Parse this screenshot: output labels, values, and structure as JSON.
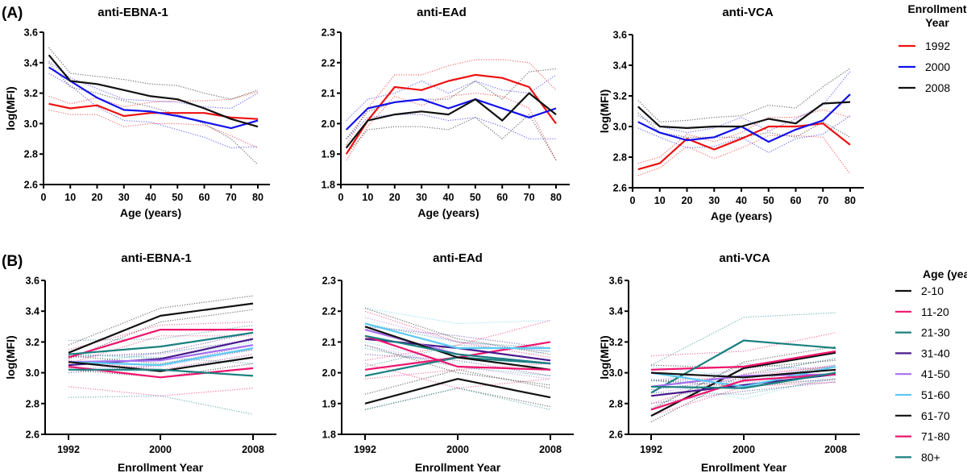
{
  "panels": {
    "A": "(A)",
    "B": "(B)"
  },
  "legend_a": {
    "title_line1": "Enrollment",
    "title_line2": "Year",
    "items": [
      {
        "label": "1992",
        "color": "#ee1111"
      },
      {
        "label": "2000",
        "color": "#1111ee"
      },
      {
        "label": "2008",
        "color": "#111111"
      }
    ]
  },
  "legend_b": {
    "title": "Age (years)",
    "items": [
      {
        "label": "2-10",
        "color": "#111111"
      },
      {
        "label": "11-20",
        "color": "#f0146e"
      },
      {
        "label": "21-30",
        "color": "#1a8080"
      },
      {
        "label": "31-40",
        "color": "#4b1a8c"
      },
      {
        "label": "41-50",
        "color": "#a66df0"
      },
      {
        "label": "51-60",
        "color": "#5ccaf2"
      },
      {
        "label": "61-70",
        "color": "#111111"
      },
      {
        "label": "71-80",
        "color": "#f0146e"
      },
      {
        "label": "80+",
        "color": "#1a8080"
      }
    ]
  },
  "chart_data": [
    {
      "id": "A1",
      "type": "line",
      "title": "anti-EBNA-1",
      "xlabel": "Age (years)",
      "ylabel": "log(MFI)",
      "x": [
        2,
        10,
        20,
        30,
        40,
        50,
        60,
        70,
        80
      ],
      "xticks": [
        "0",
        "10",
        "20",
        "30",
        "40",
        "50",
        "60",
        "70",
        "80"
      ],
      "xlim": [
        0,
        80
      ],
      "yticks": [
        "2.6",
        "2.8",
        "3.0",
        "3.2",
        "3.4",
        "3.6"
      ],
      "ylim": [
        2.6,
        3.6
      ],
      "series": [
        {
          "name": "1992",
          "color": "#ee1111",
          "values": [
            3.13,
            3.1,
            3.12,
            3.05,
            3.07,
            3.07,
            3.07,
            3.04,
            3.03
          ],
          "ci_upper": [
            3.18,
            3.13,
            3.17,
            3.11,
            3.14,
            3.15,
            3.15,
            3.16,
            3.21
          ],
          "ci_lower": [
            3.09,
            3.06,
            3.06,
            2.98,
            3.0,
            3.0,
            2.99,
            2.92,
            2.84
          ]
        },
        {
          "name": "2000",
          "color": "#1111ee",
          "values": [
            3.37,
            3.28,
            3.17,
            3.09,
            3.08,
            3.05,
            3.01,
            2.97,
            3.02
          ],
          "ci_upper": [
            3.41,
            3.3,
            3.23,
            3.16,
            3.15,
            3.14,
            3.11,
            3.1,
            3.2
          ],
          "ci_lower": [
            3.33,
            3.25,
            3.11,
            3.02,
            3.01,
            2.96,
            2.91,
            2.84,
            2.85
          ]
        },
        {
          "name": "2008",
          "color": "#111111",
          "values": [
            3.45,
            3.28,
            3.26,
            3.22,
            3.18,
            3.16,
            3.1,
            3.03,
            2.98
          ],
          "ci_upper": [
            3.5,
            3.33,
            3.31,
            3.29,
            3.26,
            3.25,
            3.2,
            3.16,
            3.22
          ],
          "ci_lower": [
            3.4,
            3.24,
            3.2,
            3.15,
            3.11,
            3.06,
            3.0,
            2.9,
            2.73
          ]
        }
      ]
    },
    {
      "id": "A2",
      "type": "line",
      "title": "anti-EAd",
      "xlabel": "Age (years)",
      "ylabel": "",
      "x": [
        2,
        10,
        20,
        30,
        40,
        50,
        60,
        70,
        80
      ],
      "xticks": [
        "0",
        "10",
        "20",
        "30",
        "40",
        "50",
        "60",
        "70",
        "80"
      ],
      "xlim": [
        0,
        80
      ],
      "yticks": [
        "1.8",
        "1.9",
        "2.0",
        "2.1",
        "2.2",
        "2.3"
      ],
      "ylim": [
        1.8,
        2.3
      ],
      "series": [
        {
          "name": "1992",
          "color": "#ee1111",
          "values": [
            1.9,
            2.01,
            2.12,
            2.11,
            2.14,
            2.16,
            2.15,
            2.12,
            2.0
          ],
          "ci_upper": [
            1.93,
            2.05,
            2.16,
            2.16,
            2.19,
            2.21,
            2.21,
            2.2,
            2.11
          ],
          "ci_lower": [
            1.88,
            1.99,
            2.09,
            2.06,
            2.09,
            2.1,
            2.09,
            2.05,
            1.88
          ]
        },
        {
          "name": "2000",
          "color": "#1111ee",
          "values": [
            1.98,
            2.05,
            2.07,
            2.08,
            2.05,
            2.08,
            2.05,
            2.02,
            2.05
          ],
          "ci_upper": [
            2.01,
            2.08,
            2.1,
            2.14,
            2.1,
            2.14,
            2.11,
            2.1,
            2.16
          ],
          "ci_lower": [
            1.95,
            2.02,
            2.03,
            2.03,
            2.01,
            2.02,
            1.99,
            1.95,
            1.95
          ]
        },
        {
          "name": "2008",
          "color": "#111111",
          "values": [
            1.92,
            2.01,
            2.03,
            2.04,
            2.03,
            2.08,
            2.01,
            2.1,
            2.03
          ],
          "ci_upper": [
            1.95,
            2.04,
            2.07,
            2.08,
            2.08,
            2.14,
            2.08,
            2.17,
            2.18
          ],
          "ci_lower": [
            1.9,
            1.98,
            1.99,
            1.99,
            1.98,
            2.02,
            1.95,
            2.03,
            1.88
          ]
        }
      ]
    },
    {
      "id": "A3",
      "type": "line",
      "title": "anti-VCA",
      "xlabel": "Age (years)",
      "ylabel": "log(MFI)",
      "x": [
        2,
        10,
        20,
        30,
        40,
        50,
        60,
        70,
        80
      ],
      "xticks": [
        "0",
        "10",
        "20",
        "30",
        "40",
        "50",
        "60",
        "70",
        "80"
      ],
      "xlim": [
        0,
        80
      ],
      "yticks": [
        "2.6",
        "2.8",
        "3.0",
        "3.2",
        "3.4",
        "3.6"
      ],
      "ylim": [
        2.6,
        3.6
      ],
      "series": [
        {
          "name": "1992",
          "color": "#ee1111",
          "values": [
            2.72,
            2.76,
            2.92,
            2.85,
            2.92,
            3.0,
            3.0,
            3.02,
            2.88
          ],
          "ci_upper": [
            2.76,
            2.8,
            2.95,
            2.9,
            2.96,
            3.06,
            3.06,
            3.11,
            3.06
          ],
          "ci_lower": [
            2.68,
            2.73,
            2.87,
            2.79,
            2.86,
            2.94,
            2.94,
            2.93,
            2.69
          ]
        },
        {
          "name": "2000",
          "color": "#1111ee",
          "values": [
            3.03,
            2.96,
            2.91,
            2.93,
            3.0,
            2.9,
            2.98,
            3.04,
            3.21
          ],
          "ci_upper": [
            3.07,
            3.0,
            2.96,
            2.99,
            3.06,
            2.97,
            3.05,
            3.14,
            3.36
          ],
          "ci_lower": [
            2.99,
            2.93,
            2.86,
            2.87,
            2.93,
            2.83,
            2.92,
            2.95,
            3.07
          ]
        },
        {
          "name": "2008",
          "color": "#111111",
          "values": [
            3.13,
            3.0,
            2.99,
            3.0,
            3.0,
            3.05,
            3.02,
            3.15,
            3.16
          ],
          "ci_upper": [
            3.17,
            3.03,
            3.04,
            3.06,
            3.07,
            3.14,
            3.12,
            3.26,
            3.38
          ],
          "ci_lower": [
            3.09,
            2.96,
            2.93,
            2.93,
            2.93,
            2.96,
            2.93,
            3.03,
            2.93
          ]
        }
      ]
    },
    {
      "id": "B1",
      "type": "line",
      "title": "anti-EBNA-1",
      "xlabel": "Enrollment Year",
      "ylabel": "log(MFI)",
      "x": [
        "1992",
        "2000",
        "2008"
      ],
      "yticks": [
        "2.6",
        "2.8",
        "3.0",
        "3.2",
        "3.4",
        "3.6"
      ],
      "ylim": [
        2.6,
        3.6
      ],
      "series": [
        {
          "name": "2-10",
          "color": "#111111",
          "values": [
            3.13,
            3.37,
            3.45
          ],
          "ci_upper": [
            3.18,
            3.42,
            3.5
          ],
          "ci_lower": [
            3.09,
            3.33,
            3.41
          ]
        },
        {
          "name": "11-20",
          "color": "#f0146e",
          "values": [
            3.1,
            3.28,
            3.28
          ],
          "ci_upper": [
            3.15,
            3.31,
            3.33
          ],
          "ci_lower": [
            3.06,
            3.24,
            3.24
          ]
        },
        {
          "name": "21-30",
          "color": "#1a8080",
          "values": [
            3.12,
            3.17,
            3.26
          ],
          "ci_upper": [
            3.21,
            3.22,
            3.31
          ],
          "ci_lower": [
            3.05,
            3.13,
            3.21
          ]
        },
        {
          "name": "31-40",
          "color": "#4b1a8c",
          "values": [
            3.05,
            3.09,
            3.22
          ],
          "ci_upper": [
            3.1,
            3.13,
            3.26
          ],
          "ci_lower": [
            3.0,
            3.05,
            3.18
          ]
        },
        {
          "name": "41-50",
          "color": "#a66df0",
          "values": [
            3.07,
            3.08,
            3.18
          ],
          "ci_upper": [
            3.11,
            3.12,
            3.22
          ],
          "ci_lower": [
            3.03,
            3.04,
            3.15
          ]
        },
        {
          "name": "51-60",
          "color": "#5ccaf2",
          "values": [
            3.07,
            3.05,
            3.16
          ],
          "ci_upper": [
            3.12,
            3.09,
            3.2
          ],
          "ci_lower": [
            3.02,
            3.01,
            3.12
          ]
        },
        {
          "name": "61-70",
          "color": "#111111",
          "values": [
            3.07,
            3.01,
            3.1
          ],
          "ci_upper": [
            3.11,
            3.06,
            3.15
          ],
          "ci_lower": [
            3.02,
            2.97,
            3.06
          ]
        },
        {
          "name": "71-80",
          "color": "#f0146e",
          "values": [
            3.04,
            2.97,
            3.03
          ],
          "ci_upper": [
            3.08,
            3.02,
            3.12
          ],
          "ci_lower": [
            2.91,
            2.85,
            2.9
          ]
        },
        {
          "name": "80+",
          "color": "#1a8080",
          "values": [
            3.02,
            3.02,
            2.98
          ],
          "ci_upper": [
            3.12,
            3.1,
            3.06
          ],
          "ci_lower": [
            2.84,
            2.85,
            2.73
          ]
        }
      ]
    },
    {
      "id": "B2",
      "type": "line",
      "title": "anti-EAd",
      "xlabel": "Enrollment Year",
      "ylabel": "",
      "x": [
        "1992",
        "2000",
        "2008"
      ],
      "yticks": [
        "1.8",
        "1.9",
        "2.0",
        "2.1",
        "2.2",
        "2.3"
      ],
      "ylim": [
        1.8,
        2.3
      ],
      "series": [
        {
          "name": "2-10",
          "color": "#111111",
          "values": [
            1.9,
            1.98,
            1.92
          ],
          "ci_upper": [
            1.93,
            2.01,
            1.95
          ],
          "ci_lower": [
            1.88,
            1.95,
            1.89
          ]
        },
        {
          "name": "11-20",
          "color": "#f0146e",
          "values": [
            2.01,
            2.05,
            2.1
          ],
          "ci_upper": [
            2.04,
            2.09,
            2.17
          ],
          "ci_lower": [
            1.98,
            2.01,
            2.03
          ]
        },
        {
          "name": "21-30",
          "color": "#1a8080",
          "values": [
            1.99,
            2.05,
            2.03
          ],
          "ci_upper": [
            2.02,
            2.09,
            2.07
          ],
          "ci_lower": [
            1.88,
            1.95,
            1.88
          ]
        },
        {
          "name": "31-40",
          "color": "#4b1a8c",
          "values": [
            2.11,
            2.08,
            2.04
          ],
          "ci_upper": [
            2.15,
            2.12,
            2.08
          ],
          "ci_lower": [
            2.06,
            2.04,
            1.99
          ]
        },
        {
          "name": "41-50",
          "color": "#a66df0",
          "values": [
            2.14,
            2.06,
            2.03
          ],
          "ci_upper": [
            2.18,
            2.1,
            2.07
          ],
          "ci_lower": [
            2.09,
            2.02,
            1.98
          ]
        },
        {
          "name": "51-60",
          "color": "#5ccaf2",
          "values": [
            2.16,
            2.08,
            2.08
          ],
          "ci_upper": [
            2.21,
            2.16,
            2.17
          ],
          "ci_lower": [
            2.1,
            2.03,
            2.07
          ]
        },
        {
          "name": "61-70",
          "color": "#111111",
          "values": [
            2.15,
            2.05,
            2.01
          ],
          "ci_upper": [
            2.21,
            2.11,
            2.06
          ],
          "ci_lower": [
            2.09,
            2.0,
            1.96
          ]
        },
        {
          "name": "71-80",
          "color": "#f0146e",
          "values": [
            2.12,
            2.02,
            2.01
          ],
          "ci_upper": [
            2.2,
            2.1,
            2.05
          ],
          "ci_lower": [
            2.03,
            1.95,
            1.98
          ]
        },
        {
          "name": "80+",
          "color": "#1a8080",
          "values": [
            2.12,
            2.06,
            2.03
          ],
          "ci_upper": [
            2.16,
            2.1,
            2.08
          ],
          "ci_lower": [
            2.08,
            2.02,
            1.99
          ]
        }
      ]
    },
    {
      "id": "B3",
      "type": "line",
      "title": "anti-VCA",
      "xlabel": "Enrollment Year",
      "ylabel": "log(MFI)",
      "x": [
        "1992",
        "2000",
        "2008"
      ],
      "yticks": [
        "2.6",
        "2.8",
        "3.0",
        "3.2",
        "3.4",
        "3.6"
      ],
      "ylim": [
        2.6,
        3.6
      ],
      "series": [
        {
          "name": "2-10",
          "color": "#111111",
          "values": [
            2.72,
            3.03,
            3.13
          ],
          "ci_upper": [
            2.76,
            3.07,
            3.17
          ],
          "ci_lower": [
            2.68,
            2.99,
            3.09
          ]
        },
        {
          "name": "11-20",
          "color": "#f0146e",
          "values": [
            3.02,
            3.04,
            3.14
          ],
          "ci_upper": [
            3.11,
            3.14,
            3.26
          ],
          "ci_lower": [
            2.95,
            2.97,
            3.05
          ]
        },
        {
          "name": "21-30",
          "color": "#1a8080",
          "values": [
            2.87,
            3.21,
            3.16
          ],
          "ci_upper": [
            3.05,
            3.36,
            3.39
          ],
          "ci_lower": [
            2.77,
            3.06,
            3.01
          ]
        },
        {
          "name": "31-40",
          "color": "#4b1a8c",
          "values": [
            2.85,
            2.92,
            2.99
          ],
          "ci_upper": [
            2.89,
            2.96,
            3.04
          ],
          "ci_lower": [
            2.8,
            2.88,
            2.94
          ]
        },
        {
          "name": "41-50",
          "color": "#a66df0",
          "values": [
            2.91,
            2.98,
            2.99
          ],
          "ci_upper": [
            2.95,
            3.02,
            3.04
          ],
          "ci_lower": [
            2.87,
            2.94,
            2.95
          ]
        },
        {
          "name": "51-60",
          "color": "#5ccaf2",
          "values": [
            3.0,
            2.91,
            3.04
          ],
          "ci_upper": [
            3.04,
            2.97,
            3.1
          ],
          "ci_lower": [
            2.96,
            2.83,
            2.98
          ]
        },
        {
          "name": "61-70",
          "color": "#111111",
          "values": [
            3.0,
            2.97,
            3.02
          ],
          "ci_upper": [
            3.05,
            3.03,
            3.08
          ],
          "ci_lower": [
            2.95,
            2.91,
            2.96
          ]
        },
        {
          "name": "71-80",
          "color": "#f0146e",
          "values": [
            2.76,
            2.95,
            2.99
          ],
          "ci_upper": [
            2.8,
            2.99,
            3.04
          ],
          "ci_lower": [
            2.72,
            2.91,
            2.94
          ]
        },
        {
          "name": "80+",
          "color": "#1a8080",
          "values": [
            2.91,
            2.9,
            3.0
          ],
          "ci_upper": [
            2.95,
            2.94,
            3.05
          ],
          "ci_lower": [
            2.87,
            2.86,
            2.96
          ]
        }
      ]
    }
  ]
}
